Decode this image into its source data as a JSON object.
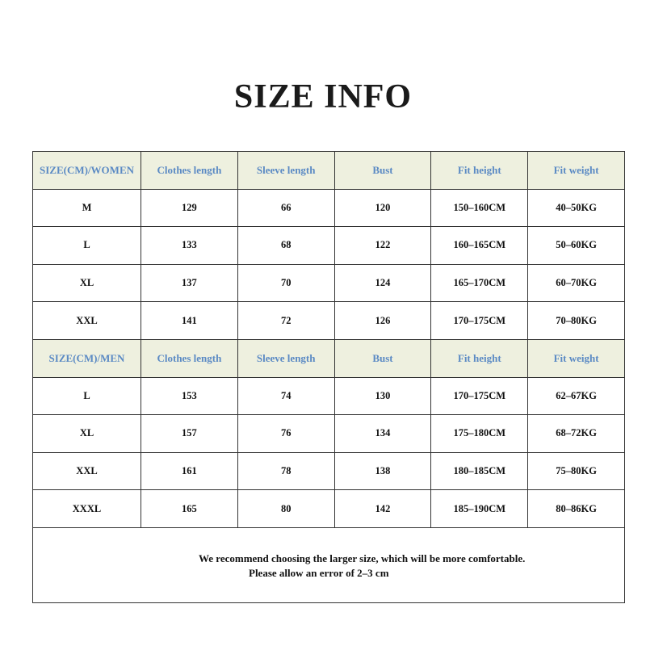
{
  "title": "SIZE INFO",
  "colors": {
    "header_bg": "#eef0df",
    "header_text": "#5b8ac4"
  },
  "columns": [
    "Clothes length",
    "Sleeve length",
    "Bust",
    "Fit height",
    "Fit weight"
  ],
  "women": {
    "label": "SIZE(CM)/WOMEN",
    "rows": [
      [
        "M",
        "129",
        "66",
        "120",
        "150–160CM",
        "40–50KG"
      ],
      [
        "L",
        "133",
        "68",
        "122",
        "160–165CM",
        "50–60KG"
      ],
      [
        "XL",
        "137",
        "70",
        "124",
        "165–170CM",
        "60–70KG"
      ],
      [
        "XXL",
        "141",
        "72",
        "126",
        "170–175CM",
        "70–80KG"
      ]
    ]
  },
  "men": {
    "label": "SIZE(CM)/MEN",
    "rows": [
      [
        "L",
        "153",
        "74",
        "130",
        "170–175CM",
        "62–67KG"
      ],
      [
        "XL",
        "157",
        "76",
        "134",
        "175–180CM",
        "68–72KG"
      ],
      [
        "XXL",
        "161",
        "78",
        "138",
        "180–185CM",
        "75–80KG"
      ],
      [
        "XXXL",
        "165",
        "80",
        "142",
        "185–190CM",
        "80–86KG"
      ]
    ]
  },
  "footer": {
    "note1": "We recommend choosing the larger size, which will be more comfortable.",
    "note2": "Please allow an error of 2–3 cm"
  }
}
